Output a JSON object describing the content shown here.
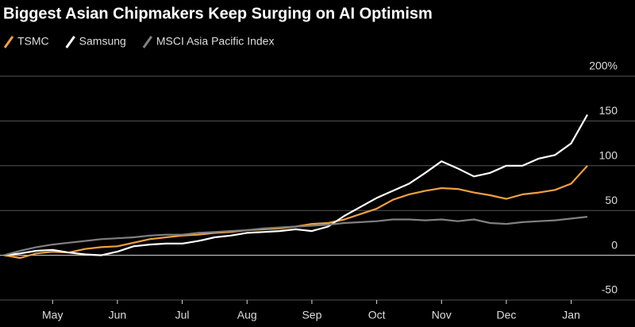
{
  "chart_data": {
    "type": "line",
    "title": "Biggest Asian Chipmakers Keep Surging on AI Optimism",
    "categories": [
      null,
      null,
      null,
      "May",
      null,
      null,
      null,
      "Jun",
      null,
      null,
      null,
      "Jul",
      null,
      null,
      null,
      "Aug",
      null,
      null,
      null,
      "Sep",
      null,
      null,
      null,
      "Oct",
      null,
      null,
      null,
      "Nov",
      null,
      null,
      null,
      "Dec",
      null,
      null,
      null,
      "Jan",
      null
    ],
    "series": [
      {
        "name": "TSMC",
        "color": "#f0a040",
        "values": [
          0,
          -3,
          2,
          4,
          3,
          7,
          9,
          10,
          14,
          18,
          20,
          22,
          23,
          25,
          26,
          28,
          29,
          30,
          32,
          35,
          36,
          40,
          46,
          52,
          62,
          68,
          72,
          75,
          74,
          70,
          67,
          63,
          68,
          70,
          73,
          80,
          100
        ]
      },
      {
        "name": "Samsung",
        "color": "#ffffff",
        "values": [
          0,
          2,
          5,
          6,
          3,
          1,
          0,
          4,
          10,
          12,
          13,
          13,
          16,
          20,
          22,
          25,
          26,
          27,
          29,
          27,
          32,
          44,
          54,
          64,
          72,
          80,
          92,
          105,
          97,
          88,
          92,
          100,
          100,
          108,
          112,
          125,
          157
        ]
      },
      {
        "name": "MSCI Asia Pacific Index",
        "color": "#808080",
        "values": [
          0,
          5,
          9,
          12,
          14,
          16,
          18,
          19,
          20,
          22,
          23,
          23,
          25,
          26,
          27,
          28,
          30,
          31,
          32,
          33,
          34,
          36,
          37,
          38,
          40,
          40,
          39,
          40,
          38,
          40,
          36,
          35,
          37,
          38,
          39,
          41,
          43
        ]
      }
    ],
    "ylim": [
      -50,
      200
    ],
    "yticks": [
      -50,
      0,
      50,
      100,
      150,
      {
        "value": 200,
        "label": "200%"
      }
    ],
    "grid": true
  }
}
